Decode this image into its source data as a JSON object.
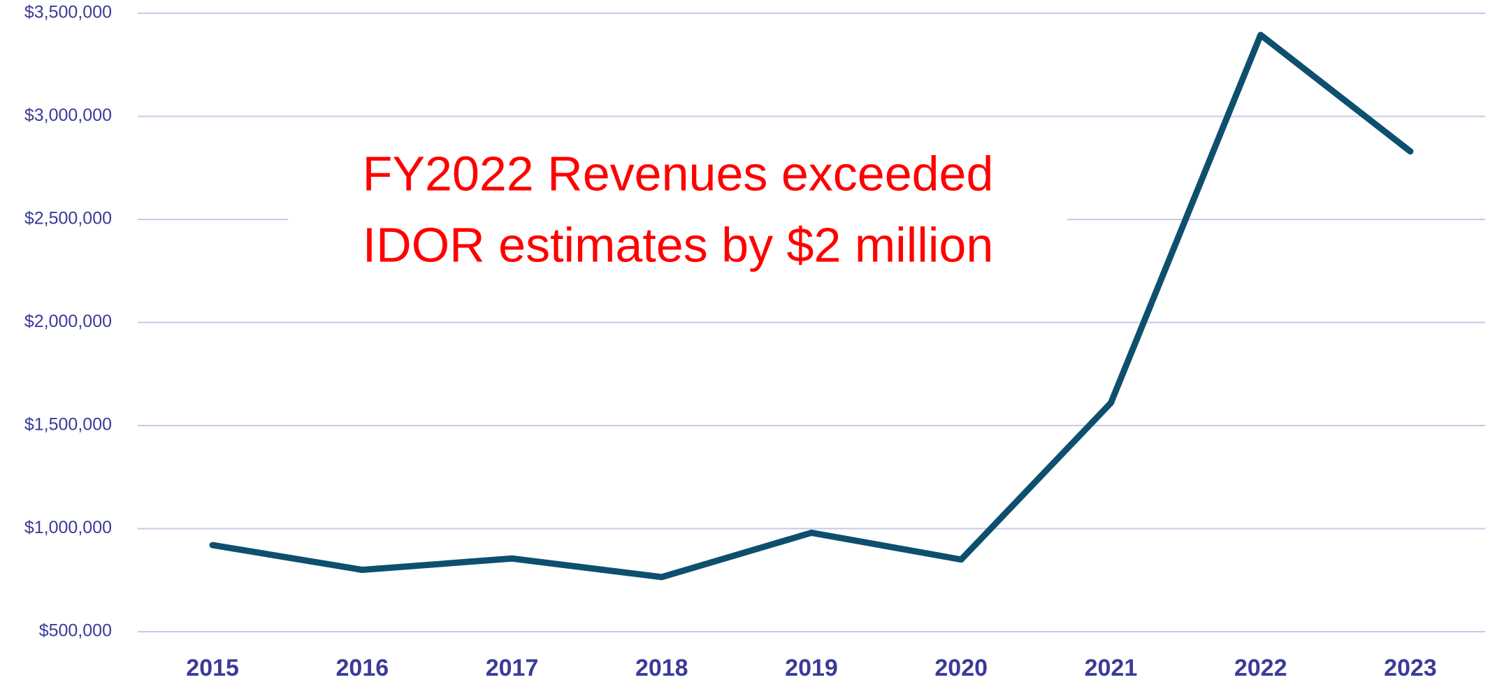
{
  "chart_data": {
    "type": "line",
    "annotation": [
      "FY2022 Revenues exceeded",
      "IDOR estimates by $2 million"
    ],
    "categories": [
      "2015",
      "2016",
      "2017",
      "2018",
      "2019",
      "2020",
      "2021",
      "2022",
      "2023"
    ],
    "values": [
      920000,
      800000,
      855000,
      765000,
      980000,
      850000,
      1610000,
      3395000,
      2830000
    ],
    "color": "#0e4f6e",
    "ylim": [
      500000,
      3500000
    ],
    "yticks": [
      {
        "value": 500000,
        "label": "$500,000"
      },
      {
        "value": 1000000,
        "label": "$1,000,000"
      },
      {
        "value": 1500000,
        "label": "$1,500,000"
      },
      {
        "value": 2000000,
        "label": "$2,000,000"
      },
      {
        "value": 2500000,
        "label": "$2,500,000"
      },
      {
        "value": 3000000,
        "label": "$3,000,000"
      },
      {
        "value": 3500000,
        "label": "$3,500,000"
      }
    ],
    "grid": true
  }
}
